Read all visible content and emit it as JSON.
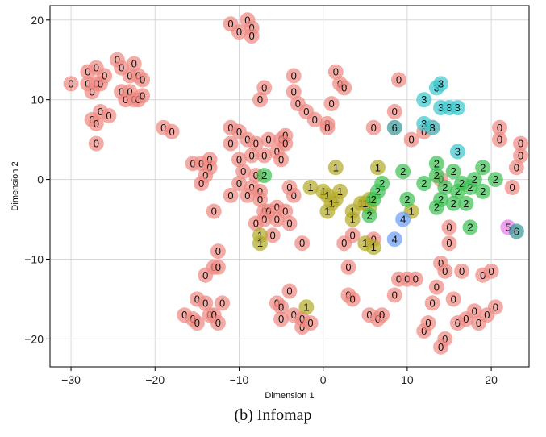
{
  "caption": "(b) Infomap",
  "chart_data": {
    "type": "scatter",
    "xlabel": "Dimension 1",
    "ylabel": "Dimension 2",
    "xlim": [
      -32.5,
      24.5
    ],
    "ylim": [
      -23.5,
      21.8
    ],
    "xticks": [
      -30,
      -20,
      -10,
      0,
      10,
      20
    ],
    "yticks": [
      -20,
      -10,
      0,
      10,
      20
    ],
    "tick_labels_x": [
      "−30",
      "−20",
      "−10",
      "0",
      "10",
      "20"
    ],
    "tick_labels_y": [
      "−20",
      "−10",
      "0",
      "10",
      "20"
    ],
    "grid": true,
    "legend": "none",
    "label_by_community": true,
    "community_colors": {
      "0": "#f08a84",
      "1": "#b5ac2a",
      "2": "#3fc254",
      "3": "#3ec8cf",
      "4": "#6e9ef6",
      "5": "#e87de8",
      "6": "#3a9a9a"
    },
    "points": [
      {
        "x": -30,
        "y": 12,
        "c": 0
      },
      {
        "x": -28,
        "y": 13.5,
        "c": 0
      },
      {
        "x": -27,
        "y": 14,
        "c": 0
      },
      {
        "x": -28,
        "y": 12,
        "c": 0
      },
      {
        "x": -27.5,
        "y": 11,
        "c": 0
      },
      {
        "x": -27,
        "y": 12,
        "c": 0
      },
      {
        "x": -26.5,
        "y": 12,
        "c": 0
      },
      {
        "x": -26,
        "y": 13,
        "c": 0
      },
      {
        "x": -27.5,
        "y": 7.5,
        "c": 0
      },
      {
        "x": -27,
        "y": 7,
        "c": 0
      },
      {
        "x": -26.5,
        "y": 8.5,
        "c": 0
      },
      {
        "x": -25.5,
        "y": 8,
        "c": 0
      },
      {
        "x": -27,
        "y": 4.5,
        "c": 0
      },
      {
        "x": -24.5,
        "y": 15,
        "c": 0
      },
      {
        "x": -24,
        "y": 14,
        "c": 0
      },
      {
        "x": -22.5,
        "y": 14.5,
        "c": 0
      },
      {
        "x": -23,
        "y": 13,
        "c": 0
      },
      {
        "x": -22,
        "y": 13,
        "c": 0
      },
      {
        "x": -21.5,
        "y": 12.5,
        "c": 0
      },
      {
        "x": -24,
        "y": 11,
        "c": 0
      },
      {
        "x": -23.5,
        "y": 10,
        "c": 0
      },
      {
        "x": -23,
        "y": 11,
        "c": 0
      },
      {
        "x": -22.5,
        "y": 10,
        "c": 0
      },
      {
        "x": -22,
        "y": 10,
        "c": 0
      },
      {
        "x": -21.5,
        "y": 10.5,
        "c": 0
      },
      {
        "x": -19,
        "y": 6.5,
        "c": 0
      },
      {
        "x": -18,
        "y": 6,
        "c": 0
      },
      {
        "x": -11,
        "y": 19.5,
        "c": 0
      },
      {
        "x": -10,
        "y": 18.5,
        "c": 0
      },
      {
        "x": -9,
        "y": 20,
        "c": 0
      },
      {
        "x": -8.5,
        "y": 19,
        "c": 0
      },
      {
        "x": -8.5,
        "y": 18,
        "c": 0
      },
      {
        "x": -7,
        "y": 11.5,
        "c": 0
      },
      {
        "x": -7.5,
        "y": 10,
        "c": 0
      },
      {
        "x": -3.5,
        "y": 13,
        "c": 0
      },
      {
        "x": -3.5,
        "y": 11,
        "c": 0
      },
      {
        "x": -3,
        "y": 9.5,
        "c": 0
      },
      {
        "x": -2,
        "y": 8.5,
        "c": 0
      },
      {
        "x": -1,
        "y": 7.5,
        "c": 0
      },
      {
        "x": 1.5,
        "y": 13.5,
        "c": 0
      },
      {
        "x": 2,
        "y": 12,
        "c": 0
      },
      {
        "x": 2.5,
        "y": 11.5,
        "c": 0
      },
      {
        "x": 1,
        "y": 9.5,
        "c": 0
      },
      {
        "x": 0.5,
        "y": 7,
        "c": 0
      },
      {
        "x": 0.5,
        "y": 6.5,
        "c": 0
      },
      {
        "x": 9,
        "y": 12.5,
        "c": 0
      },
      {
        "x": 8.5,
        "y": 8.5,
        "c": 0
      },
      {
        "x": 6,
        "y": 6.5,
        "c": 0
      },
      {
        "x": 10.5,
        "y": 5,
        "c": 0
      },
      {
        "x": 12,
        "y": 6,
        "c": 0
      },
      {
        "x": 13,
        "y": 6.5,
        "c": 0
      },
      {
        "x": -11,
        "y": 6.5,
        "c": 0
      },
      {
        "x": -11,
        "y": 4.5,
        "c": 0
      },
      {
        "x": -10,
        "y": 6,
        "c": 0
      },
      {
        "x": -9,
        "y": 5,
        "c": 0
      },
      {
        "x": -8,
        "y": 4.5,
        "c": 0
      },
      {
        "x": -8.5,
        "y": 3,
        "c": 0
      },
      {
        "x": -7,
        "y": 3,
        "c": 0
      },
      {
        "x": -6.5,
        "y": 5,
        "c": 0
      },
      {
        "x": -5,
        "y": 5,
        "c": 0
      },
      {
        "x": -4.5,
        "y": 5.5,
        "c": 0
      },
      {
        "x": -5.5,
        "y": 3.5,
        "c": 0
      },
      {
        "x": -5,
        "y": 2.5,
        "c": 0
      },
      {
        "x": -10,
        "y": 2.5,
        "c": 0
      },
      {
        "x": -9.5,
        "y": 1,
        "c": 0
      },
      {
        "x": -8,
        "y": 0.5,
        "c": 0
      },
      {
        "x": -8.5,
        "y": -1,
        "c": 0
      },
      {
        "x": -10,
        "y": -0.5,
        "c": 0
      },
      {
        "x": -11,
        "y": -2,
        "c": 0
      },
      {
        "x": -9,
        "y": -2,
        "c": 0
      },
      {
        "x": -7.5,
        "y": -1.5,
        "c": 0
      },
      {
        "x": -7.5,
        "y": -2.5,
        "c": 0
      },
      {
        "x": -7,
        "y": -4,
        "c": 0
      },
      {
        "x": -6.5,
        "y": -4,
        "c": 0
      },
      {
        "x": -7,
        "y": -5,
        "c": 0
      },
      {
        "x": -5.5,
        "y": -3.5,
        "c": 0
      },
      {
        "x": -5.5,
        "y": -5,
        "c": 0
      },
      {
        "x": -4.5,
        "y": -4,
        "c": 0
      },
      {
        "x": -4,
        "y": -5.5,
        "c": 0
      },
      {
        "x": -3.5,
        "y": -2,
        "c": 0
      },
      {
        "x": -4,
        "y": -1,
        "c": 0
      },
      {
        "x": -8,
        "y": -5.5,
        "c": 0
      },
      {
        "x": -6,
        "y": -7,
        "c": 0
      },
      {
        "x": -2.5,
        "y": -8,
        "c": 0
      },
      {
        "x": -15.5,
        "y": 2,
        "c": 0
      },
      {
        "x": -14.5,
        "y": 2,
        "c": 0
      },
      {
        "x": -13.5,
        "y": 2.5,
        "c": 0
      },
      {
        "x": -13.5,
        "y": 1.5,
        "c": 0
      },
      {
        "x": -14,
        "y": 0.5,
        "c": 0
      },
      {
        "x": -14.5,
        "y": -0.5,
        "c": 0
      },
      {
        "x": -13,
        "y": -4,
        "c": 0
      },
      {
        "x": -12.5,
        "y": -9,
        "c": 0
      },
      {
        "x": -13,
        "y": -11,
        "c": 0
      },
      {
        "x": -12.5,
        "y": -11,
        "c": 0
      },
      {
        "x": -14,
        "y": -12,
        "c": 0
      },
      {
        "x": -15,
        "y": -15,
        "c": 0
      },
      {
        "x": -14,
        "y": -15.5,
        "c": 0
      },
      {
        "x": -16.5,
        "y": -17,
        "c": 0
      },
      {
        "x": -15.5,
        "y": -17.5,
        "c": 0
      },
      {
        "x": -13.5,
        "y": -17,
        "c": 0
      },
      {
        "x": -13,
        "y": -17,
        "c": 0
      },
      {
        "x": -15,
        "y": -18,
        "c": 0
      },
      {
        "x": -12.5,
        "y": -18,
        "c": 0
      },
      {
        "x": -12,
        "y": -15.5,
        "c": 0
      },
      {
        "x": -5.5,
        "y": -15.5,
        "c": 0
      },
      {
        "x": -5,
        "y": -16,
        "c": 0
      },
      {
        "x": -5,
        "y": -17.5,
        "c": 0
      },
      {
        "x": -4,
        "y": -14,
        "c": 0
      },
      {
        "x": -3.5,
        "y": -17,
        "c": 0
      },
      {
        "x": -2.5,
        "y": -18.5,
        "c": 0
      },
      {
        "x": -2.5,
        "y": -17.5,
        "c": 0
      },
      {
        "x": -1.5,
        "y": -18,
        "c": 0
      },
      {
        "x": 3,
        "y": -14.5,
        "c": 0
      },
      {
        "x": 3.5,
        "y": -15,
        "c": 0
      },
      {
        "x": 5.5,
        "y": -17,
        "c": 0
      },
      {
        "x": 6.5,
        "y": -17.5,
        "c": 0
      },
      {
        "x": 7,
        "y": -17,
        "c": 0
      },
      {
        "x": 3,
        "y": -11,
        "c": 0
      },
      {
        "x": 2.5,
        "y": -8,
        "c": 0
      },
      {
        "x": 9,
        "y": -12.5,
        "c": 0
      },
      {
        "x": 8.5,
        "y": -14.5,
        "c": 0
      },
      {
        "x": 10,
        "y": -12.5,
        "c": 0
      },
      {
        "x": 11,
        "y": -12.5,
        "c": 0
      },
      {
        "x": 12,
        "y": -19,
        "c": 0
      },
      {
        "x": 12.5,
        "y": -18,
        "c": 0
      },
      {
        "x": 13,
        "y": -15.5,
        "c": 0
      },
      {
        "x": 13.5,
        "y": -13.5,
        "c": 0
      },
      {
        "x": 14,
        "y": -10.5,
        "c": 0
      },
      {
        "x": 14.5,
        "y": -11.5,
        "c": 0
      },
      {
        "x": 15,
        "y": -8,
        "c": 0
      },
      {
        "x": 15,
        "y": -6,
        "c": 0
      },
      {
        "x": 15.5,
        "y": -15,
        "c": 0
      },
      {
        "x": 16,
        "y": -18,
        "c": 0
      },
      {
        "x": 16.5,
        "y": -11.5,
        "c": 0
      },
      {
        "x": 17,
        "y": -17.5,
        "c": 0
      },
      {
        "x": 18.5,
        "y": -18,
        "c": 0
      },
      {
        "x": 18,
        "y": -16.5,
        "c": 0
      },
      {
        "x": 19,
        "y": -12,
        "c": 0
      },
      {
        "x": 20,
        "y": -11.5,
        "c": 0
      },
      {
        "x": 19.5,
        "y": -17,
        "c": 0
      },
      {
        "x": 20.5,
        "y": -16,
        "c": 0
      },
      {
        "x": 14.5,
        "y": -20,
        "c": 0
      },
      {
        "x": 14,
        "y": -21,
        "c": 0
      },
      {
        "x": 21,
        "y": 6.5,
        "c": 0
      },
      {
        "x": 21,
        "y": 5,
        "c": 0
      },
      {
        "x": 23.5,
        "y": 4.5,
        "c": 0
      },
      {
        "x": 23.5,
        "y": 3,
        "c": 0
      },
      {
        "x": 23,
        "y": 1.5,
        "c": 0
      },
      {
        "x": 22.5,
        "y": -1,
        "c": 0
      },
      {
        "x": 14,
        "y": 0,
        "c": 0
      },
      {
        "x": -4.5,
        "y": 4.5,
        "c": 0
      },
      {
        "x": 6,
        "y": -7.5,
        "c": 0
      },
      {
        "x": 3.5,
        "y": -7,
        "c": 0
      },
      {
        "x": 1.5,
        "y": 1.5,
        "c": 1
      },
      {
        "x": -1.5,
        "y": -1,
        "c": 1
      },
      {
        "x": 0,
        "y": -1.5,
        "c": 1
      },
      {
        "x": 0.5,
        "y": -2,
        "c": 1
      },
      {
        "x": 1.5,
        "y": -2.5,
        "c": 1
      },
      {
        "x": 2,
        "y": -1.5,
        "c": 1
      },
      {
        "x": 1,
        "y": -3,
        "c": 1
      },
      {
        "x": 0.5,
        "y": -4,
        "c": 1
      },
      {
        "x": 3.5,
        "y": -4,
        "c": 1
      },
      {
        "x": 3.5,
        "y": -5,
        "c": 1
      },
      {
        "x": 4.5,
        "y": -3,
        "c": 1
      },
      {
        "x": 5.5,
        "y": -3.5,
        "c": 1
      },
      {
        "x": 5,
        "y": -3,
        "c": 1
      },
      {
        "x": 5.5,
        "y": -2.5,
        "c": 1
      },
      {
        "x": 6.5,
        "y": 1.5,
        "c": 1
      },
      {
        "x": 10.5,
        "y": -4,
        "c": 1
      },
      {
        "x": 5,
        "y": -8,
        "c": 1
      },
      {
        "x": 6,
        "y": -8.5,
        "c": 1
      },
      {
        "x": -7.5,
        "y": -7,
        "c": 1
      },
      {
        "x": -7.5,
        "y": -8,
        "c": 1
      },
      {
        "x": -2,
        "y": -16,
        "c": 1
      },
      {
        "x": -7,
        "y": 0.5,
        "c": 2
      },
      {
        "x": 7,
        "y": -0.5,
        "c": 2
      },
      {
        "x": 9.5,
        "y": 1,
        "c": 2
      },
      {
        "x": 6.5,
        "y": -1.5,
        "c": 2
      },
      {
        "x": 6,
        "y": -2.5,
        "c": 2
      },
      {
        "x": 5.5,
        "y": -4.5,
        "c": 2
      },
      {
        "x": 10,
        "y": -2.5,
        "c": 2
      },
      {
        "x": 12,
        "y": -0.5,
        "c": 2
      },
      {
        "x": 13.5,
        "y": 2,
        "c": 2
      },
      {
        "x": 13.5,
        "y": 0.5,
        "c": 2
      },
      {
        "x": 14.5,
        "y": -1,
        "c": 2
      },
      {
        "x": 14,
        "y": -2.5,
        "c": 2
      },
      {
        "x": 13.5,
        "y": -3.5,
        "c": 2
      },
      {
        "x": 15.5,
        "y": 1,
        "c": 2
      },
      {
        "x": 15.5,
        "y": -3,
        "c": 2
      },
      {
        "x": 16,
        "y": -1.5,
        "c": 2
      },
      {
        "x": 16.5,
        "y": -0.5,
        "c": 2
      },
      {
        "x": 17,
        "y": -3,
        "c": 2
      },
      {
        "x": 17.5,
        "y": -1,
        "c": 2
      },
      {
        "x": 18,
        "y": 0,
        "c": 2
      },
      {
        "x": 19,
        "y": 1.5,
        "c": 2
      },
      {
        "x": 19,
        "y": -1.5,
        "c": 2
      },
      {
        "x": 20.5,
        "y": 0,
        "c": 2
      },
      {
        "x": 17.5,
        "y": -6,
        "c": 2
      },
      {
        "x": 13.5,
        "y": 11.5,
        "c": 3
      },
      {
        "x": 14,
        "y": 12,
        "c": 3
      },
      {
        "x": 12,
        "y": 10,
        "c": 3
      },
      {
        "x": 14,
        "y": 9,
        "c": 3
      },
      {
        "x": 15,
        "y": 9,
        "c": 3
      },
      {
        "x": 16,
        "y": 9,
        "c": 3
      },
      {
        "x": 12,
        "y": 7,
        "c": 3
      },
      {
        "x": 13,
        "y": 6.5,
        "c": 3
      },
      {
        "x": 16,
        "y": 3.5,
        "c": 3
      },
      {
        "x": 8.5,
        "y": -7.5,
        "c": 4
      },
      {
        "x": 9.5,
        "y": -5,
        "c": 4
      },
      {
        "x": 22,
        "y": -6,
        "c": 5
      },
      {
        "x": 23,
        "y": -6.5,
        "c": 6
      },
      {
        "x": 8.5,
        "y": 6.5,
        "c": 6
      }
    ]
  }
}
